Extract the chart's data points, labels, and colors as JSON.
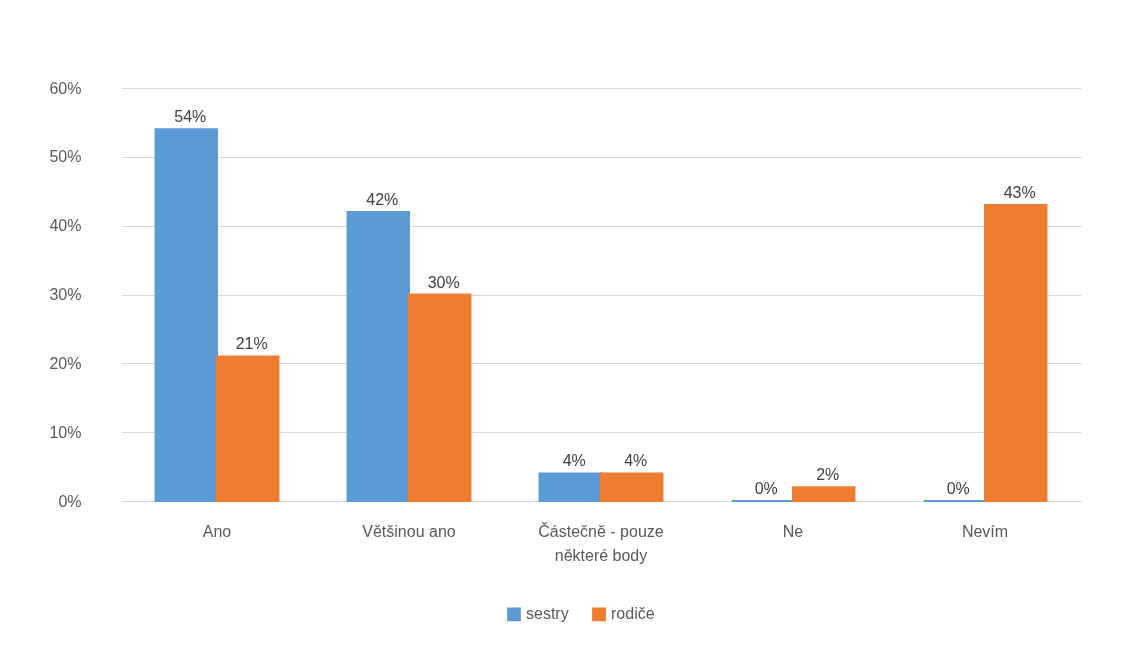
{
  "chart_data": {
    "type": "bar",
    "categories": [
      "Ano",
      "Většinou ano",
      "Částečně - pouze některé body",
      "Ne",
      "Nevím"
    ],
    "series": [
      {
        "name": "sestry",
        "color": "#5b9bd5",
        "values": [
          54,
          42,
          4,
          0,
          0
        ],
        "value_labels": [
          "54%",
          "42%",
          "4%",
          "0%",
          "0%"
        ]
      },
      {
        "name": "rodiče",
        "color": "#ed7d31",
        "values": [
          21,
          30,
          4,
          2,
          43
        ],
        "value_labels": [
          "21%",
          "30%",
          "4%",
          "2%",
          "43%"
        ]
      }
    ],
    "ylim": [
      0,
      60
    ],
    "yticks": [
      {
        "value": 0,
        "label": "0%"
      },
      {
        "value": 10,
        "label": "10%"
      },
      {
        "value": 20,
        "label": "20%"
      },
      {
        "value": 30,
        "label": "30%"
      },
      {
        "value": 40,
        "label": "40%"
      },
      {
        "value": 50,
        "label": "50%"
      },
      {
        "value": 60,
        "label": "60%"
      }
    ],
    "grid": "y",
    "legend": "bottom"
  }
}
